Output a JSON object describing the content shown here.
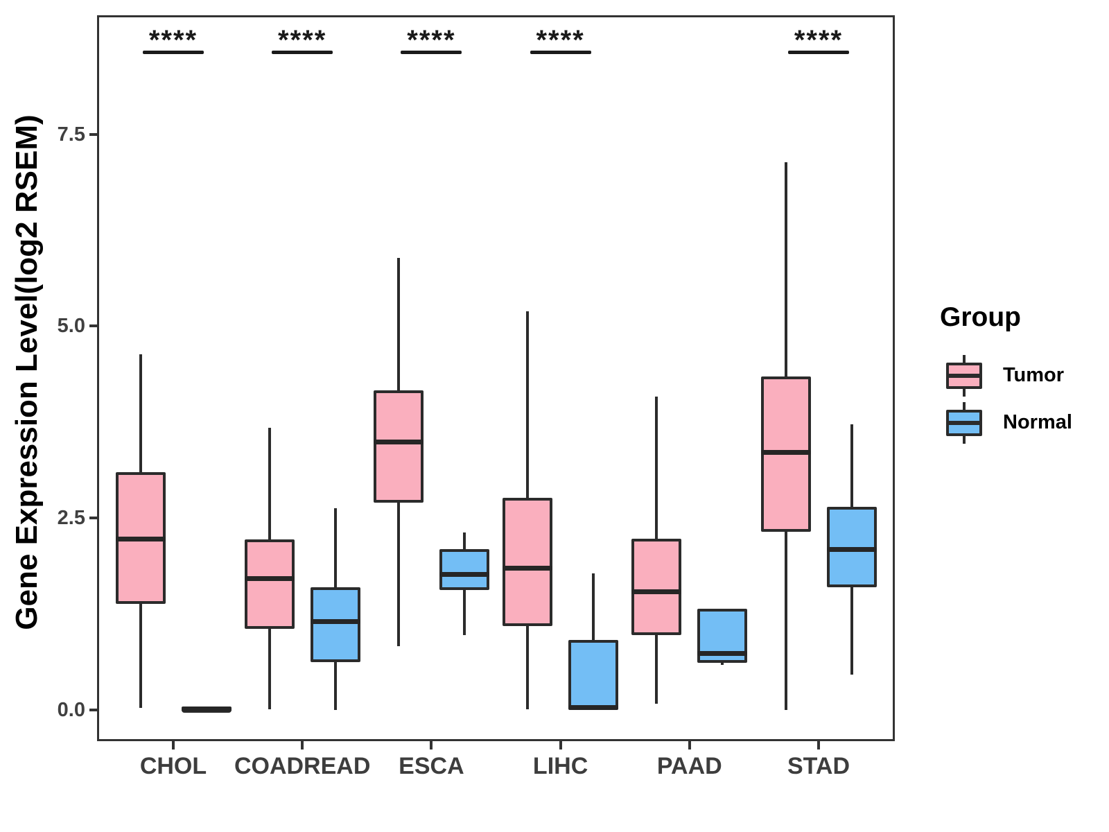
{
  "chart_data": {
    "type": "boxplot",
    "title": "",
    "xlabel": "",
    "ylabel": "Gene Expression Level(log2 RSEM)",
    "ylim": [
      -0.41,
      9.05
    ],
    "yticks": [
      0.0,
      2.5,
      5.0,
      7.5
    ],
    "ytick_labels": [
      "0.0",
      "2.5",
      "5.0",
      "7.5"
    ],
    "categories": [
      "CHOL",
      "COADREAD",
      "ESCA",
      "LIHC",
      "PAAD",
      "STAD"
    ],
    "significance": [
      "****",
      "****",
      "****",
      "****",
      null,
      "****"
    ],
    "grid": "off",
    "legend_position": "right",
    "legend": {
      "title": "Group",
      "entries": [
        {
          "label": "Tumor",
          "color": "#FAAFBE"
        },
        {
          "label": "Normal",
          "color": "#73BEF5"
        }
      ]
    },
    "series": [
      {
        "name": "Tumor",
        "color": "#FAAFBE",
        "boxes": [
          {
            "min": 0.02,
            "q1": 1.38,
            "med": 2.22,
            "q3": 3.1,
            "max": 4.63
          },
          {
            "min": 0.01,
            "q1": 1.05,
            "med": 1.71,
            "q3": 2.22,
            "max": 3.67
          },
          {
            "min": 0.83,
            "q1": 2.7,
            "med": 3.49,
            "q3": 4.16,
            "max": 5.89
          },
          {
            "min": 0.01,
            "q1": 1.09,
            "med": 1.84,
            "q3": 2.76,
            "max": 5.19
          },
          {
            "min": 0.08,
            "q1": 0.97,
            "med": 1.54,
            "q3": 2.23,
            "max": 4.08
          },
          {
            "min": 0.0,
            "q1": 2.32,
            "med": 3.35,
            "q3": 4.34,
            "max": 7.13
          }
        ]
      },
      {
        "name": "Normal",
        "color": "#73BEF5",
        "boxes": [
          {
            "min": 0.0,
            "q1": 0.0,
            "med": 0.01,
            "q3": 0.03,
            "max": 0.03
          },
          {
            "min": 0.0,
            "q1": 0.62,
            "med": 1.15,
            "q3": 1.6,
            "max": 2.63
          },
          {
            "min": 0.97,
            "q1": 1.56,
            "med": 1.76,
            "q3": 2.09,
            "max": 2.31
          },
          {
            "min": 0.0,
            "q1": 0.01,
            "med": 0.03,
            "q3": 0.91,
            "max": 1.78
          },
          {
            "min": 0.58,
            "q1": 0.61,
            "med": 0.73,
            "q3": 1.32,
            "max": 1.32
          },
          {
            "min": 0.46,
            "q1": 1.6,
            "med": 2.09,
            "q3": 2.64,
            "max": 3.72
          }
        ]
      }
    ]
  },
  "colors": {
    "tumor_fill": "#FAAFBE",
    "normal_fill": "#73BEF5",
    "box_border": "#2b2b2b",
    "panel_border": "#333333",
    "tick_label": "#404040",
    "axis_title": "#000000"
  }
}
